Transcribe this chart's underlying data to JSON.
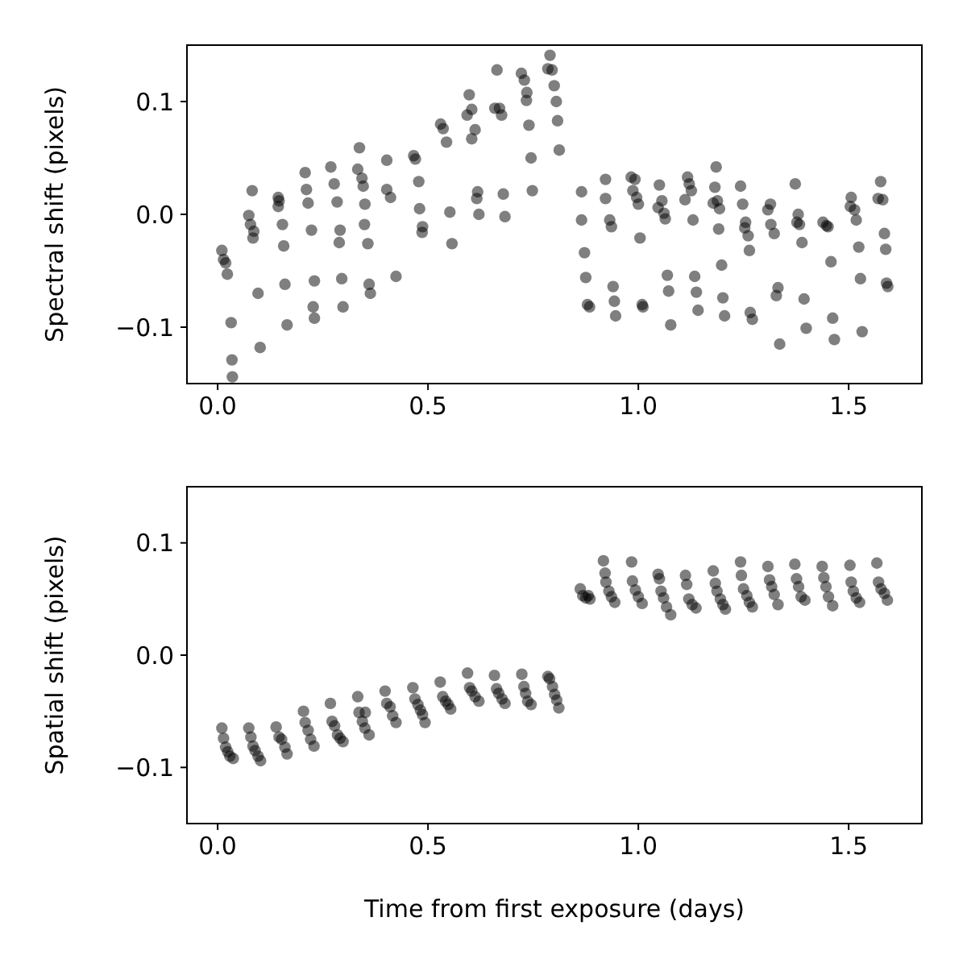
{
  "chart_data": [
    {
      "type": "scatter",
      "ylabel": "Spectral shift (pixels)",
      "marker": "circle",
      "color": "#000000",
      "xlim": [
        -0.073,
        1.674
      ],
      "ylim": [
        -0.15,
        0.15
      ],
      "xticks": [
        {
          "value": 0,
          "label": "0.0"
        },
        {
          "value": 0.5,
          "label": "0.5"
        },
        {
          "value": 1,
          "label": "1.0"
        },
        {
          "value": 1.5,
          "label": "1.5"
        }
      ],
      "yticks": [
        {
          "value": -0.1,
          "label": "−0.1"
        },
        {
          "value": 0,
          "label": "0.0"
        },
        {
          "value": 0.1,
          "label": "0.1"
        }
      ],
      "x": [
        0.01,
        0.014,
        0.019,
        0.023,
        0.032,
        0.034,
        0.035,
        0.082,
        0.074,
        0.078,
        0.086,
        0.084,
        0.096,
        0.101,
        0.144,
        0.146,
        0.144,
        0.154,
        0.157,
        0.16,
        0.165,
        0.208,
        0.211,
        0.215,
        0.223,
        0.23,
        0.227,
        0.23,
        0.269,
        0.277,
        0.284,
        0.291,
        0.289,
        0.295,
        0.298,
        0.337,
        0.333,
        0.343,
        0.346,
        0.35,
        0.349,
        0.357,
        0.36,
        0.363,
        0.402,
        0.402,
        0.411,
        0.424,
        0.466,
        0.47,
        0.478,
        0.48,
        0.487,
        0.486,
        0.53,
        0.536,
        0.544,
        0.552,
        0.557,
        0.598,
        0.593,
        0.604,
        0.612,
        0.604,
        0.618,
        0.616,
        0.621,
        0.664,
        0.659,
        0.67,
        0.675,
        0.679,
        0.683,
        0.722,
        0.729,
        0.735,
        0.734,
        0.74,
        0.745,
        0.748,
        0.785,
        0.79,
        0.795,
        0.8,
        0.805,
        0.808,
        0.812,
        0.865,
        0.865,
        0.872,
        0.875,
        0.879,
        0.884,
        0.922,
        0.922,
        0.932,
        0.936,
        0.94,
        0.943,
        0.946,
        0.983,
        0.992,
        0.987,
        0.996,
        1.0,
        1.004,
        1.009,
        1.011,
        1.05,
        1.056,
        1.047,
        1.061,
        1.064,
        1.069,
        1.072,
        1.077,
        1.117,
        1.121,
        1.126,
        1.111,
        1.13,
        1.134,
        1.138,
        1.142,
        1.185,
        1.182,
        1.188,
        1.178,
        1.193,
        1.191,
        1.198,
        1.201,
        1.205,
        1.243,
        1.248,
        1.255,
        1.253,
        1.261,
        1.264,
        1.266,
        1.271,
        1.314,
        1.308,
        1.315,
        1.323,
        1.332,
        1.328,
        1.336,
        1.373,
        1.38,
        1.377,
        1.383,
        1.389,
        1.394,
        1.399,
        1.439,
        1.447,
        1.451,
        1.458,
        1.462,
        1.466,
        1.506,
        1.504,
        1.514,
        1.518,
        1.524,
        1.528,
        1.532,
        1.576,
        1.57,
        1.581,
        1.585,
        1.588,
        1.59,
        1.593
      ],
      "values": [
        -0.032,
        -0.04,
        -0.043,
        -0.053,
        -0.096,
        -0.129,
        -0.144,
        0.021,
        -0.001,
        -0.009,
        -0.015,
        -0.021,
        -0.07,
        -0.118,
        0.015,
        0.012,
        0.007,
        -0.009,
        -0.028,
        -0.062,
        -0.098,
        0.037,
        0.022,
        0.01,
        -0.014,
        -0.059,
        -0.082,
        -0.092,
        0.042,
        0.027,
        0.011,
        -0.014,
        -0.025,
        -0.057,
        -0.082,
        0.059,
        0.04,
        0.032,
        0.025,
        0.009,
        -0.009,
        -0.026,
        -0.062,
        -0.07,
        0.048,
        0.022,
        0.015,
        -0.055,
        0.052,
        0.049,
        0.029,
        0.005,
        -0.011,
        -0.016,
        0.08,
        0.076,
        0.064,
        0.002,
        -0.026,
        0.106,
        0.088,
        0.093,
        0.075,
        0.067,
        0.02,
        0.014,
        0.0,
        0.128,
        0.094,
        0.094,
        0.088,
        0.018,
        -0.002,
        0.125,
        0.119,
        0.108,
        0.101,
        0.079,
        0.05,
        0.021,
        0.129,
        0.141,
        0.128,
        0.114,
        0.1,
        0.083,
        0.057,
        0.02,
        -0.005,
        -0.034,
        -0.056,
        -0.08,
        -0.082,
        0.031,
        0.014,
        -0.005,
        -0.011,
        -0.064,
        -0.077,
        -0.09,
        0.033,
        0.031,
        0.021,
        0.015,
        0.009,
        -0.021,
        -0.08,
        -0.082,
        0.026,
        0.012,
        0.006,
        0.001,
        -0.004,
        -0.054,
        -0.068,
        -0.098,
        0.033,
        0.027,
        0.021,
        0.013,
        -0.005,
        -0.055,
        -0.069,
        -0.085,
        0.042,
        0.024,
        0.012,
        0.01,
        0.005,
        -0.013,
        -0.045,
        -0.074,
        -0.09,
        0.025,
        0.009,
        -0.007,
        -0.012,
        -0.019,
        -0.032,
        -0.087,
        -0.093,
        0.009,
        0.004,
        -0.009,
        -0.017,
        -0.065,
        -0.072,
        -0.115,
        0.027,
        0.0,
        -0.007,
        -0.009,
        -0.025,
        -0.075,
        -0.101,
        -0.007,
        -0.01,
        -0.011,
        -0.042,
        -0.092,
        -0.111,
        0.015,
        0.007,
        0.004,
        -0.005,
        -0.029,
        -0.057,
        -0.104,
        0.029,
        0.014,
        0.013,
        -0.017,
        -0.031,
        -0.061,
        -0.064
      ]
    },
    {
      "type": "scatter",
      "ylabel": "Spatial shift (pixels)",
      "xlabel": "Time from first exposure (days)",
      "marker": "circle",
      "color": "#000000",
      "xlim": [
        -0.073,
        1.674
      ],
      "ylim": [
        -0.15,
        0.15
      ],
      "xticks": [
        {
          "value": 0,
          "label": "0.0"
        },
        {
          "value": 0.5,
          "label": "0.5"
        },
        {
          "value": 1,
          "label": "1.0"
        },
        {
          "value": 1.5,
          "label": "1.5"
        }
      ],
      "yticks": [
        {
          "value": -0.1,
          "label": "−0.1"
        },
        {
          "value": 0,
          "label": "0.0"
        },
        {
          "value": 0.1,
          "label": "0.1"
        }
      ],
      "x": [
        0.01,
        0.014,
        0.019,
        0.024,
        0.029,
        0.037,
        0.074,
        0.079,
        0.084,
        0.089,
        0.096,
        0.102,
        0.139,
        0.146,
        0.152,
        0.16,
        0.165,
        0.204,
        0.208,
        0.215,
        0.221,
        0.229,
        0.268,
        0.272,
        0.278,
        0.285,
        0.291,
        0.298,
        0.333,
        0.336,
        0.351,
        0.344,
        0.35,
        0.36,
        0.398,
        0.402,
        0.41,
        0.416,
        0.424,
        0.464,
        0.469,
        0.476,
        0.482,
        0.487,
        0.493,
        0.529,
        0.535,
        0.542,
        0.548,
        0.554,
        0.594,
        0.599,
        0.604,
        0.612,
        0.621,
        0.658,
        0.663,
        0.668,
        0.676,
        0.683,
        0.723,
        0.728,
        0.732,
        0.737,
        0.745,
        0.785,
        0.789,
        0.796,
        0.801,
        0.806,
        0.811,
        0.862,
        0.868,
        0.875,
        0.881,
        0.885,
        0.917,
        0.921,
        0.923,
        0.93,
        0.936,
        0.944,
        0.984,
        0.986,
        0.993,
        1.0,
        1.009,
        1.047,
        1.05,
        1.054,
        1.06,
        1.067,
        1.077,
        1.112,
        1.115,
        1.12,
        1.128,
        1.137,
        1.178,
        1.183,
        1.187,
        1.195,
        1.201,
        1.207,
        1.243,
        1.245,
        1.25,
        1.258,
        1.264,
        1.271,
        1.308,
        1.312,
        1.317,
        1.323,
        1.332,
        1.372,
        1.376,
        1.381,
        1.387,
        1.396,
        1.437,
        1.441,
        1.446,
        1.452,
        1.462,
        1.503,
        1.506,
        1.511,
        1.518,
        1.526,
        1.567,
        1.571,
        1.577,
        1.585,
        1.592
      ],
      "values": [
        -0.065,
        -0.074,
        -0.082,
        -0.086,
        -0.09,
        -0.092,
        -0.065,
        -0.073,
        -0.081,
        -0.085,
        -0.09,
        -0.094,
        -0.064,
        -0.073,
        -0.075,
        -0.082,
        -0.088,
        -0.05,
        -0.06,
        -0.067,
        -0.075,
        -0.081,
        -0.043,
        -0.059,
        -0.063,
        -0.071,
        -0.074,
        -0.077,
        -0.037,
        -0.051,
        -0.051,
        -0.059,
        -0.065,
        -0.071,
        -0.032,
        -0.043,
        -0.046,
        -0.054,
        -0.06,
        -0.029,
        -0.039,
        -0.044,
        -0.049,
        -0.053,
        -0.06,
        -0.024,
        -0.037,
        -0.041,
        -0.044,
        -0.048,
        -0.016,
        -0.029,
        -0.032,
        -0.037,
        -0.041,
        -0.018,
        -0.03,
        -0.034,
        -0.039,
        -0.043,
        -0.017,
        -0.028,
        -0.034,
        -0.041,
        -0.044,
        -0.019,
        -0.021,
        -0.028,
        -0.035,
        -0.04,
        -0.047,
        0.059,
        0.053,
        0.051,
        0.053,
        0.05,
        0.084,
        0.073,
        0.065,
        0.057,
        0.052,
        0.047,
        0.083,
        0.066,
        0.058,
        0.052,
        0.046,
        0.072,
        0.068,
        0.057,
        0.051,
        0.043,
        0.036,
        0.071,
        0.063,
        0.05,
        0.045,
        0.042,
        0.075,
        0.064,
        0.057,
        0.05,
        0.045,
        0.041,
        0.083,
        0.071,
        0.059,
        0.053,
        0.047,
        0.043,
        0.079,
        0.067,
        0.061,
        0.054,
        0.045,
        0.081,
        0.068,
        0.061,
        0.052,
        0.049,
        0.079,
        0.069,
        0.061,
        0.052,
        0.044,
        0.08,
        0.065,
        0.057,
        0.051,
        0.047,
        0.082,
        0.065,
        0.059,
        0.055,
        0.049
      ]
    }
  ]
}
